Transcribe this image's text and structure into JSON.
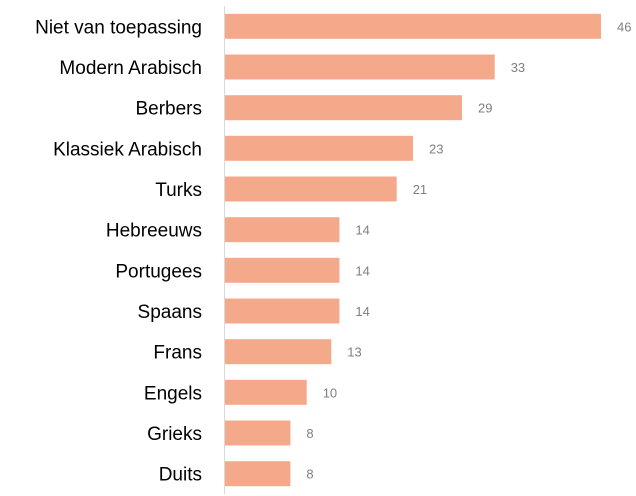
{
  "chart_data": {
    "type": "bar",
    "orientation": "horizontal",
    "categories": [
      "Niet van toepassing",
      "Modern Arabisch",
      "Berbers",
      "Klassiek Arabisch",
      "Turks",
      "Hebreeuws",
      "Portugees",
      "Spaans",
      "Frans",
      "Engels",
      "Grieks",
      "Duits"
    ],
    "values": [
      46,
      33,
      29,
      23,
      21,
      14,
      14,
      14,
      13,
      10,
      8,
      8
    ],
    "data_labels": [
      "46",
      "33",
      "29",
      "23",
      "21",
      "14",
      "14",
      "14",
      "13",
      "10",
      "8",
      "8"
    ],
    "xlim": [
      0,
      46
    ],
    "grid": false,
    "legend": "none",
    "colors": {
      "bar": "#F4A98A",
      "axis": "#d9d9d9",
      "category_text": "#000000",
      "value_text": "#7f7f7f"
    }
  }
}
